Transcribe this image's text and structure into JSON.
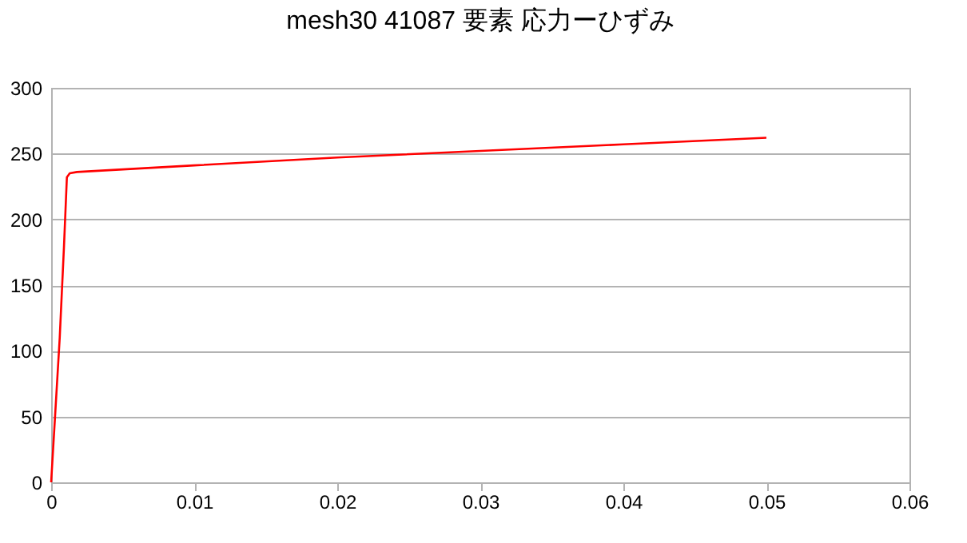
{
  "chart_data": {
    "type": "line",
    "title": "mesh30 41087 要素 応力ーひずみ",
    "series": [
      {
        "color": "#ff0000",
        "x": [
          0,
          0.0003,
          0.0006,
          0.0009,
          0.0011,
          0.0013,
          0.0018,
          0.01,
          0.02,
          0.03,
          0.04,
          0.05
        ],
        "values": [
          0,
          55,
          110,
          180,
          232,
          235,
          236,
          241,
          247,
          252,
          257,
          262
        ]
      }
    ],
    "xlim": [
      0,
      0.06
    ],
    "xticks": [
      0,
      0.01,
      0.02,
      0.03,
      0.04,
      0.05,
      0.06
    ],
    "ylim": [
      0,
      300
    ],
    "yticks": [
      0,
      50,
      100,
      150,
      200,
      250,
      300
    ],
    "grid": "y",
    "legend": false,
    "marker": "none",
    "line_style": "solid"
  }
}
